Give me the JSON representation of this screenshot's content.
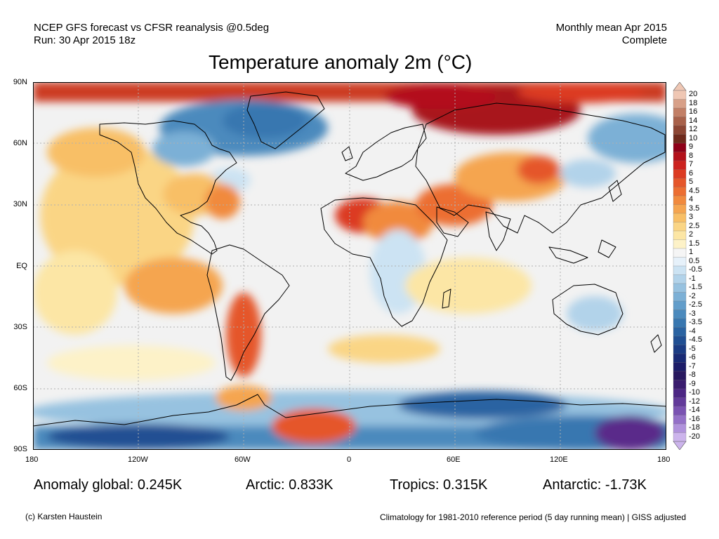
{
  "header": {
    "line1_left": "NCEP GFS forecast vs CFSR reanalysis @0.5deg",
    "line2_left": "Run: 30 Apr 2015 18z",
    "line1_right": "Monthly mean Apr 2015",
    "line2_right": "Complete"
  },
  "title": "Temperature anomaly 2m (°C)",
  "map": {
    "lat_labels": [
      "90N",
      "60N",
      "30N",
      "EQ",
      "30S",
      "60S",
      "90S"
    ],
    "lon_labels": [
      "180",
      "120W",
      "60W",
      "0",
      "60E",
      "120E",
      "180"
    ],
    "ocean_color": "#f2f2f2",
    "coast_color": "#000000"
  },
  "colorbar": {
    "labels": [
      "20",
      "18",
      "16",
      "14",
      "12",
      "10",
      "9",
      "8",
      "7",
      "6",
      "5",
      "4.5",
      "4",
      "3.5",
      "3",
      "2.5",
      "2",
      "1.5",
      "1",
      "0.5",
      "-0.5",
      "-1",
      "-1.5",
      "-2",
      "-2.5",
      "-3",
      "-3.5",
      "-4",
      "-4.5",
      "-5",
      "-6",
      "-7",
      "-8",
      "-9",
      "-10",
      "-12",
      "-14",
      "-16",
      "-18",
      "-20"
    ],
    "colors": [
      "#efc7b4",
      "#d8a088",
      "#c27f66",
      "#a8614a",
      "#8c4634",
      "#6e2a1c",
      "#8e0018",
      "#b3101a",
      "#cc2320",
      "#dc3b22",
      "#e5562a",
      "#ec6e32",
      "#f18a3e",
      "#f5a550",
      "#f8bf66",
      "#fad585",
      "#fce6a5",
      "#fdf2c8",
      "#f5f5f5",
      "#e6f1fa",
      "#cce3f3",
      "#b2d3ea",
      "#97c2e0",
      "#7cb0d6",
      "#629dca",
      "#4b8abd",
      "#3877b0",
      "#2a63a2",
      "#204f93",
      "#1b3c84",
      "#192a75",
      "#1c1c68",
      "#28185f",
      "#3a1c6e",
      "#4c2684",
      "#623a9a",
      "#7a52b2",
      "#9470c8",
      "#b092dc",
      "#ccb4ec"
    ]
  },
  "stats": {
    "global": "Anomaly global: 0.245K",
    "arctic": "Arctic: 0.833K",
    "tropics": "Tropics: 0.315K",
    "antarctic": "Antarctic: -1.73K"
  },
  "footer": {
    "left": "(c) Karsten Haustein",
    "right": "Climatology for 1981-2010 reference period (5 day running mean) | GISS adjusted"
  }
}
